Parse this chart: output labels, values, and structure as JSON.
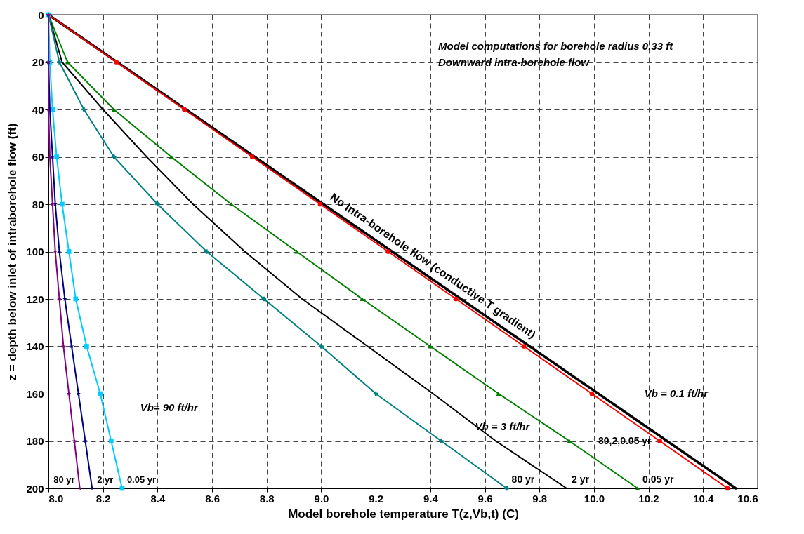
{
  "chart_data": {
    "type": "line",
    "xlabel": "Model borehole temperature T(z,Vb,t)  (C)",
    "ylabel": "z = depth below inlet of intraborehole flow (ft)",
    "xlim": [
      8.0,
      10.6
    ],
    "ylim": [
      200,
      0
    ],
    "xticks": [
      {
        "value": 8,
        "label": "8.0"
      },
      8.2,
      8.4,
      8.6,
      8.8,
      {
        "value": 9,
        "label": "9.0"
      },
      9.2,
      9.4,
      9.6,
      9.8,
      {
        "value": 10,
        "label": "10.0"
      },
      10.2,
      10.4,
      10.6
    ],
    "yticks": [
      0,
      20,
      40,
      60,
      80,
      100,
      120,
      140,
      160,
      180,
      200
    ],
    "grid": true,
    "series": [
      {
        "name": "No Intra-borehole flow (conductive T gradient)",
        "color": "#000000",
        "marker": "none",
        "x": [
          8.0,
          8.126,
          8.252,
          8.378,
          8.504,
          8.63,
          8.756,
          8.882,
          9.008,
          9.134,
          9.26,
          9.386,
          9.512,
          9.638,
          9.764,
          9.89,
          10.016,
          10.142,
          10.268,
          10.394,
          10.52
        ],
        "values": [
          0,
          10,
          20,
          30,
          40,
          50,
          60,
          70,
          80,
          90,
          100,
          110,
          120,
          130,
          140,
          150,
          160,
          170,
          180,
          190,
          200
        ]
      },
      {
        "name": "80,2,0.05 yr",
        "color": "#ff0000",
        "marker": "circle",
        "x": [
          8.0,
          8.249,
          8.498,
          8.747,
          8.996,
          9.245,
          9.494,
          9.743,
          9.992,
          10.241,
          10.49
        ],
        "values": [
          0,
          20,
          40,
          60,
          80,
          100,
          120,
          140,
          160,
          180,
          200
        ]
      },
      {
        "name": "0.05 yr",
        "color": "#008000",
        "marker": "triangle",
        "x": [
          8.0,
          8.07,
          8.24,
          8.45,
          8.67,
          8.91,
          9.15,
          9.4,
          9.65,
          9.91,
          10.16
        ],
        "values": [
          0,
          20,
          40,
          60,
          80,
          100,
          120,
          140,
          160,
          180,
          200
        ]
      },
      {
        "name": "2 yr",
        "color": "#000000",
        "marker": "none",
        "x": [
          8.0,
          8.05,
          8.2,
          8.36,
          8.53,
          8.72,
          8.93,
          9.17,
          9.41,
          9.64,
          9.9
        ],
        "values": [
          0,
          20,
          40,
          60,
          80,
          100,
          120,
          140,
          160,
          180,
          200
        ]
      },
      {
        "name": "80 yr",
        "color": "#008080",
        "marker": "cross",
        "x": [
          8.0,
          8.04,
          8.13,
          8.24,
          8.4,
          8.58,
          8.79,
          9.0,
          9.2,
          9.44,
          9.68
        ],
        "values": [
          0,
          20,
          40,
          60,
          80,
          100,
          120,
          140,
          160,
          180,
          200
        ]
      },
      {
        "name": "0.05 yr",
        "color": "#00ccff",
        "marker": "square",
        "x": [
          8.0,
          8.005,
          8.015,
          8.03,
          8.05,
          8.075,
          8.1,
          8.14,
          8.19,
          8.23,
          8.27
        ],
        "values": [
          0,
          20,
          40,
          60,
          80,
          100,
          120,
          140,
          160,
          180,
          200
        ]
      },
      {
        "name": "2 yr",
        "color": "#000080",
        "marker": "star",
        "x": [
          8.0,
          8.0,
          8.005,
          8.015,
          8.025,
          8.04,
          8.06,
          8.085,
          8.11,
          8.135,
          8.16
        ],
        "values": [
          0,
          20,
          40,
          60,
          80,
          100,
          120,
          140,
          160,
          180,
          200
        ]
      },
      {
        "name": "80 yr",
        "color": "#800080",
        "marker": "star",
        "x": [
          8.0,
          8.0,
          8.0,
          8.005,
          8.015,
          8.025,
          8.04,
          8.055,
          8.075,
          8.095,
          8.115
        ],
        "values": [
          0,
          20,
          40,
          60,
          80,
          100,
          120,
          140,
          160,
          180,
          200
        ]
      }
    ],
    "annotations": [
      "Model computations for borehole radius 0.33 ft",
      "Downward intra-borehole flow",
      "Vb= 90 ft/hr",
      "Vb = 3 ft/hr",
      "Vb = 0.1 ft/hr"
    ]
  }
}
